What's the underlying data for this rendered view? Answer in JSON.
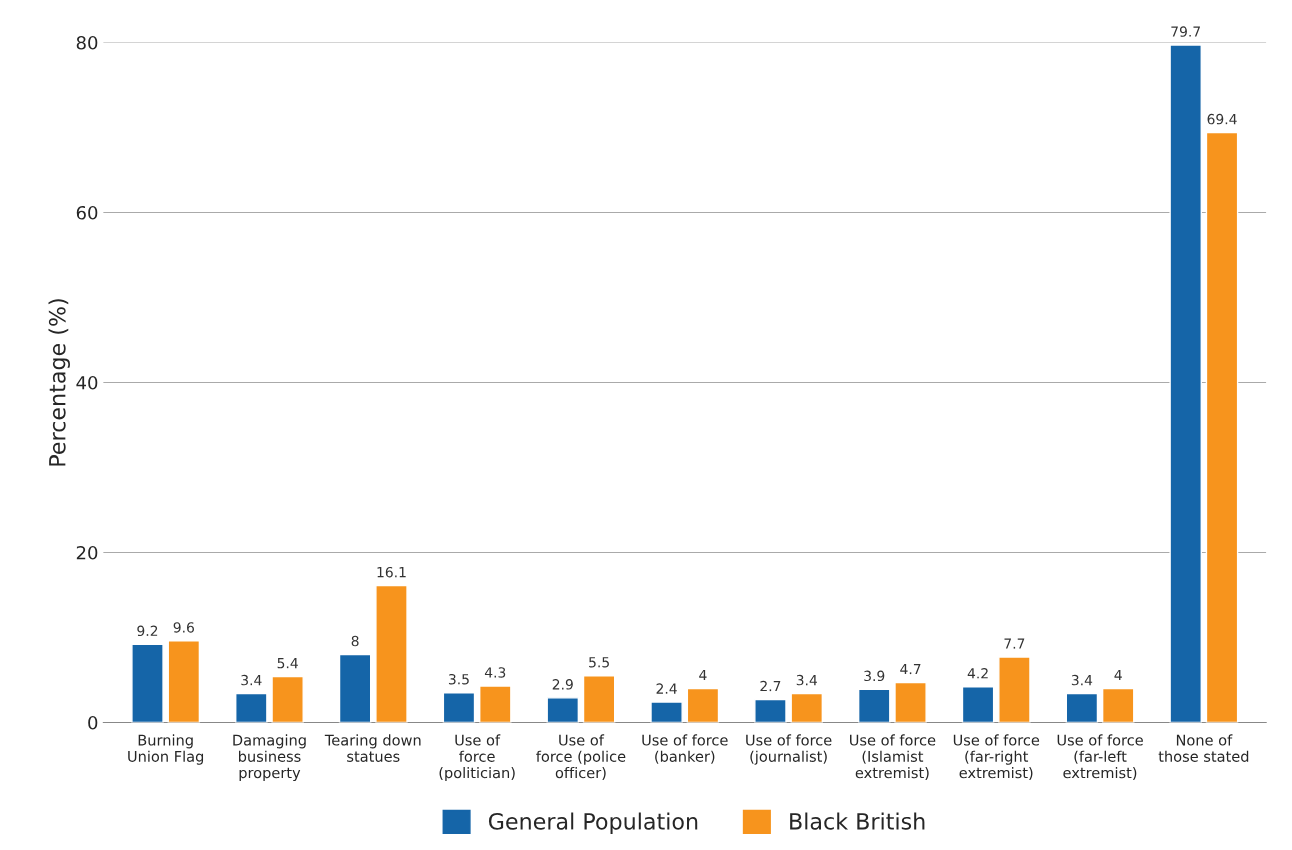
{
  "chart_data": {
    "type": "bar",
    "ylabel": "Percentage (%)",
    "categories": [
      "Burning\nUnion Flag",
      "Damaging\nbusiness\nproperty",
      "Tearing down\nstatues",
      "Use of\nforce\n(politician)",
      "Use of\nforce (police\nofficer)",
      "Use of force\n(banker)",
      "Use of force\n(journalist)",
      "Use of force\n(Islamist\nextremist)",
      "Use of force\n(far-right\nextremist)",
      "Use of force\n(far-left\nextremist)",
      "None of\nthose stated"
    ],
    "series": [
      {
        "name": "General Population",
        "color": "#1565a8",
        "values": [
          9.2,
          3.4,
          8,
          3.5,
          2.9,
          2.4,
          2.7,
          3.9,
          4.2,
          3.4,
          79.7
        ]
      },
      {
        "name": "Black British",
        "color": "#f7941d",
        "values": [
          9.6,
          5.4,
          16.1,
          4.3,
          5.5,
          4,
          3.4,
          4.7,
          7.7,
          4,
          69.4
        ]
      }
    ],
    "ylim": [
      0,
      80
    ],
    "yticks": [
      0,
      20,
      40,
      60,
      80
    ],
    "grid": "y",
    "legend": "bottom",
    "data_labels": true
  }
}
